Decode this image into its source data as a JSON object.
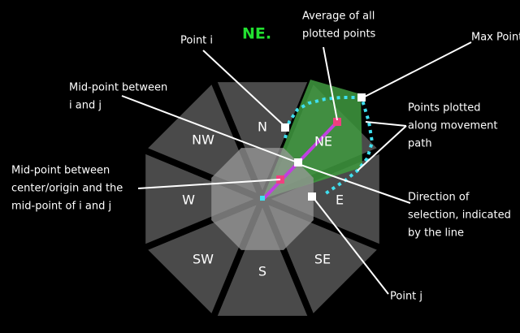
{
  "title": "NE.",
  "sectors": [
    "N",
    "NE",
    "E",
    "SE",
    "S",
    "SW",
    "W",
    "NW"
  ],
  "annotations": [
    {
      "lines": [
        "Average of all",
        "plotted points"
      ]
    },
    {
      "lines": [
        "Point i"
      ]
    },
    {
      "lines": [
        "Max Point"
      ]
    },
    {
      "lines": [
        "Mid-point between",
        "i and j"
      ]
    },
    {
      "lines": [
        "Points plotted",
        "along movement",
        "path"
      ]
    },
    {
      "lines": [
        "Mid-point between",
        "center/origin and the",
        "mid-point of i and j"
      ]
    },
    {
      "lines": [
        "Direction of",
        "selection, indicated",
        "by the line"
      ]
    },
    {
      "lines": [
        "Point j"
      ]
    }
  ]
}
